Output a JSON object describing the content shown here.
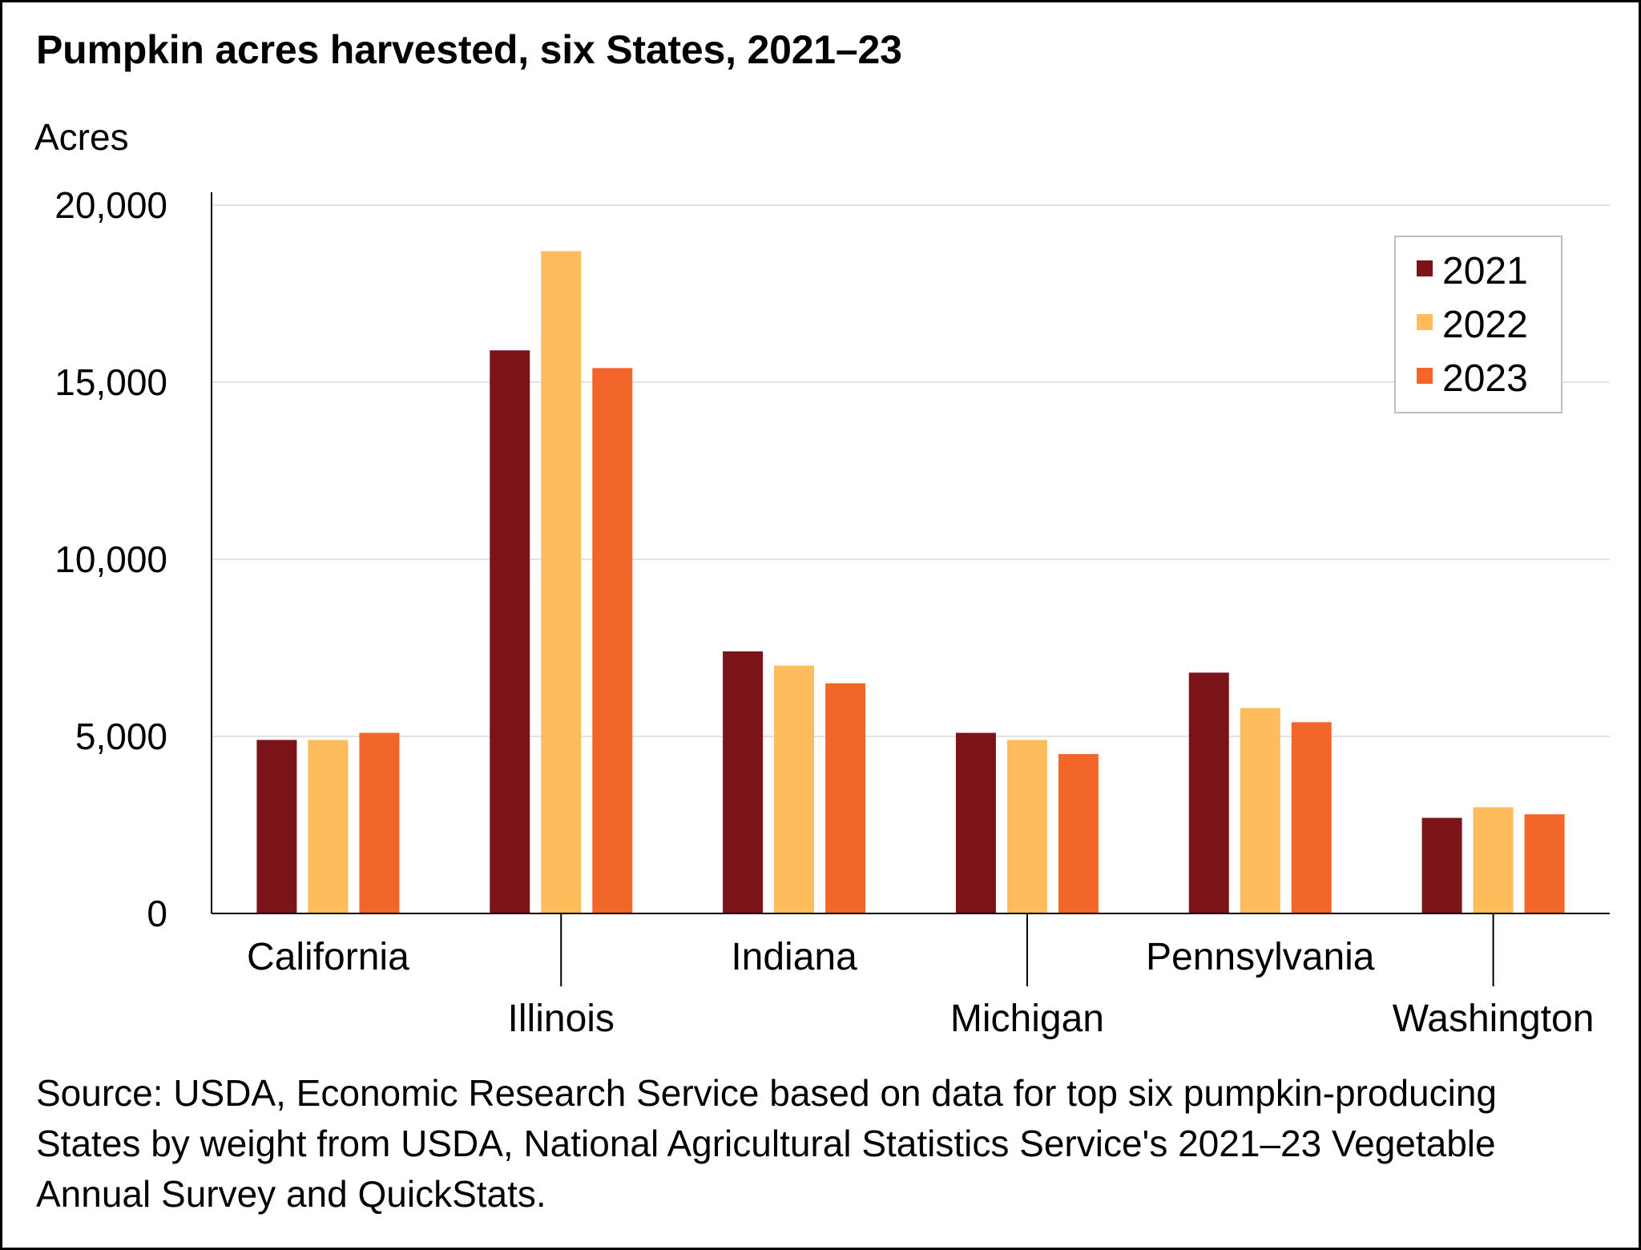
{
  "chart_data": {
    "type": "bar",
    "title": "Pumpkin acres harvested, six States, 2021–23",
    "ylabel": "Acres",
    "xlabel": "",
    "categories": [
      "California",
      "Illinois",
      "Indiana",
      "Michigan",
      "Pennsylvania",
      "Washington"
    ],
    "series": [
      {
        "name": "2021",
        "color": "#7a1418",
        "values": [
          4900,
          15900,
          7400,
          5100,
          6800,
          2700
        ]
      },
      {
        "name": "2022",
        "color": "#fdbd5c",
        "values": [
          4900,
          18700,
          7000,
          4900,
          5800,
          3000
        ]
      },
      {
        "name": "2023",
        "color": "#f26729",
        "values": [
          5100,
          15400,
          6500,
          4500,
          5400,
          2800
        ]
      }
    ],
    "ylim": [
      0,
      20000
    ],
    "yticks": [
      0,
      5000,
      10000,
      15000,
      20000
    ],
    "ytick_labels": [
      "0",
      "5,000",
      "10,000",
      "15,000",
      "20,000"
    ],
    "grid": true,
    "legend": "top-right"
  },
  "source": "Source: USDA, Economic Research Service based on data for top six pumpkin-producing States by weight from USDA, National Agricultural Statistics Service's 2021–23 Vegetable Annual Survey and QuickStats."
}
